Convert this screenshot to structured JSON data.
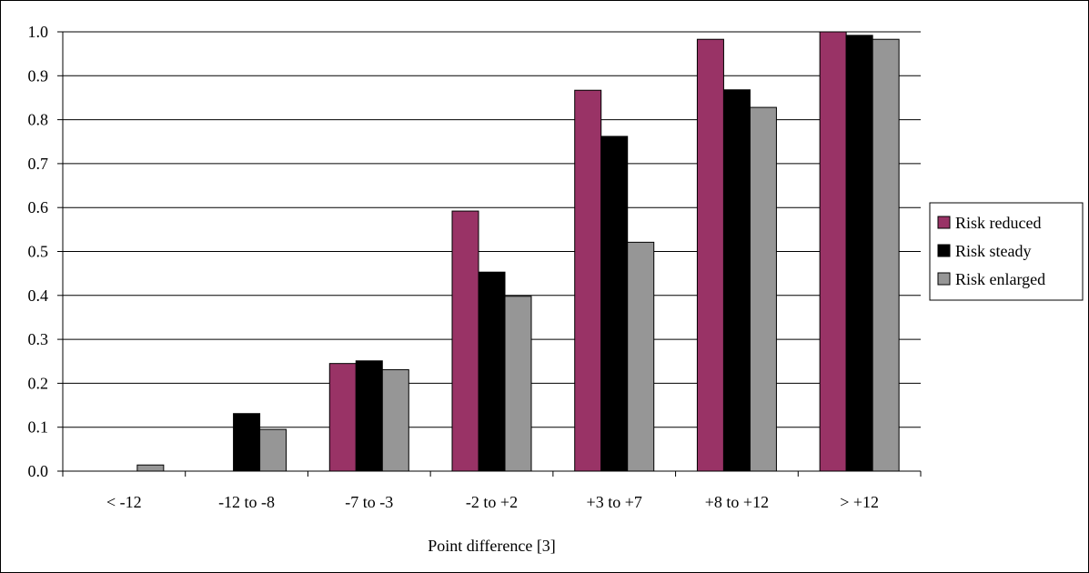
{
  "chart_data": {
    "type": "bar",
    "title": "",
    "xlabel": "Point difference [3]",
    "ylabel": "",
    "categories": [
      "< -12",
      "-12 to -8",
      "-7 to -3",
      "-2 to +2",
      "+3 to +7",
      "+8 to +12",
      "> +12"
    ],
    "series": [
      {
        "name": "Risk reduced",
        "color": "#993366",
        "values": [
          0.0,
          0.0,
          0.245,
          0.592,
          0.867,
          0.983,
          1.0
        ]
      },
      {
        "name": "Risk steady",
        "color": "#000000",
        "values": [
          0.0,
          0.131,
          0.251,
          0.453,
          0.762,
          0.868,
          0.992
        ]
      },
      {
        "name": "Risk enlarged",
        "color": "#969696",
        "values": [
          0.014,
          0.095,
          0.231,
          0.398,
          0.521,
          0.828,
          0.983
        ]
      }
    ],
    "ylim": [
      0,
      1.0
    ],
    "yticks": [
      "0.0",
      "0.1",
      "0.2",
      "0.3",
      "0.4",
      "0.5",
      "0.6",
      "0.7",
      "0.8",
      "0.9",
      "1.0"
    ],
    "grid": true,
    "legend_position": "right"
  }
}
